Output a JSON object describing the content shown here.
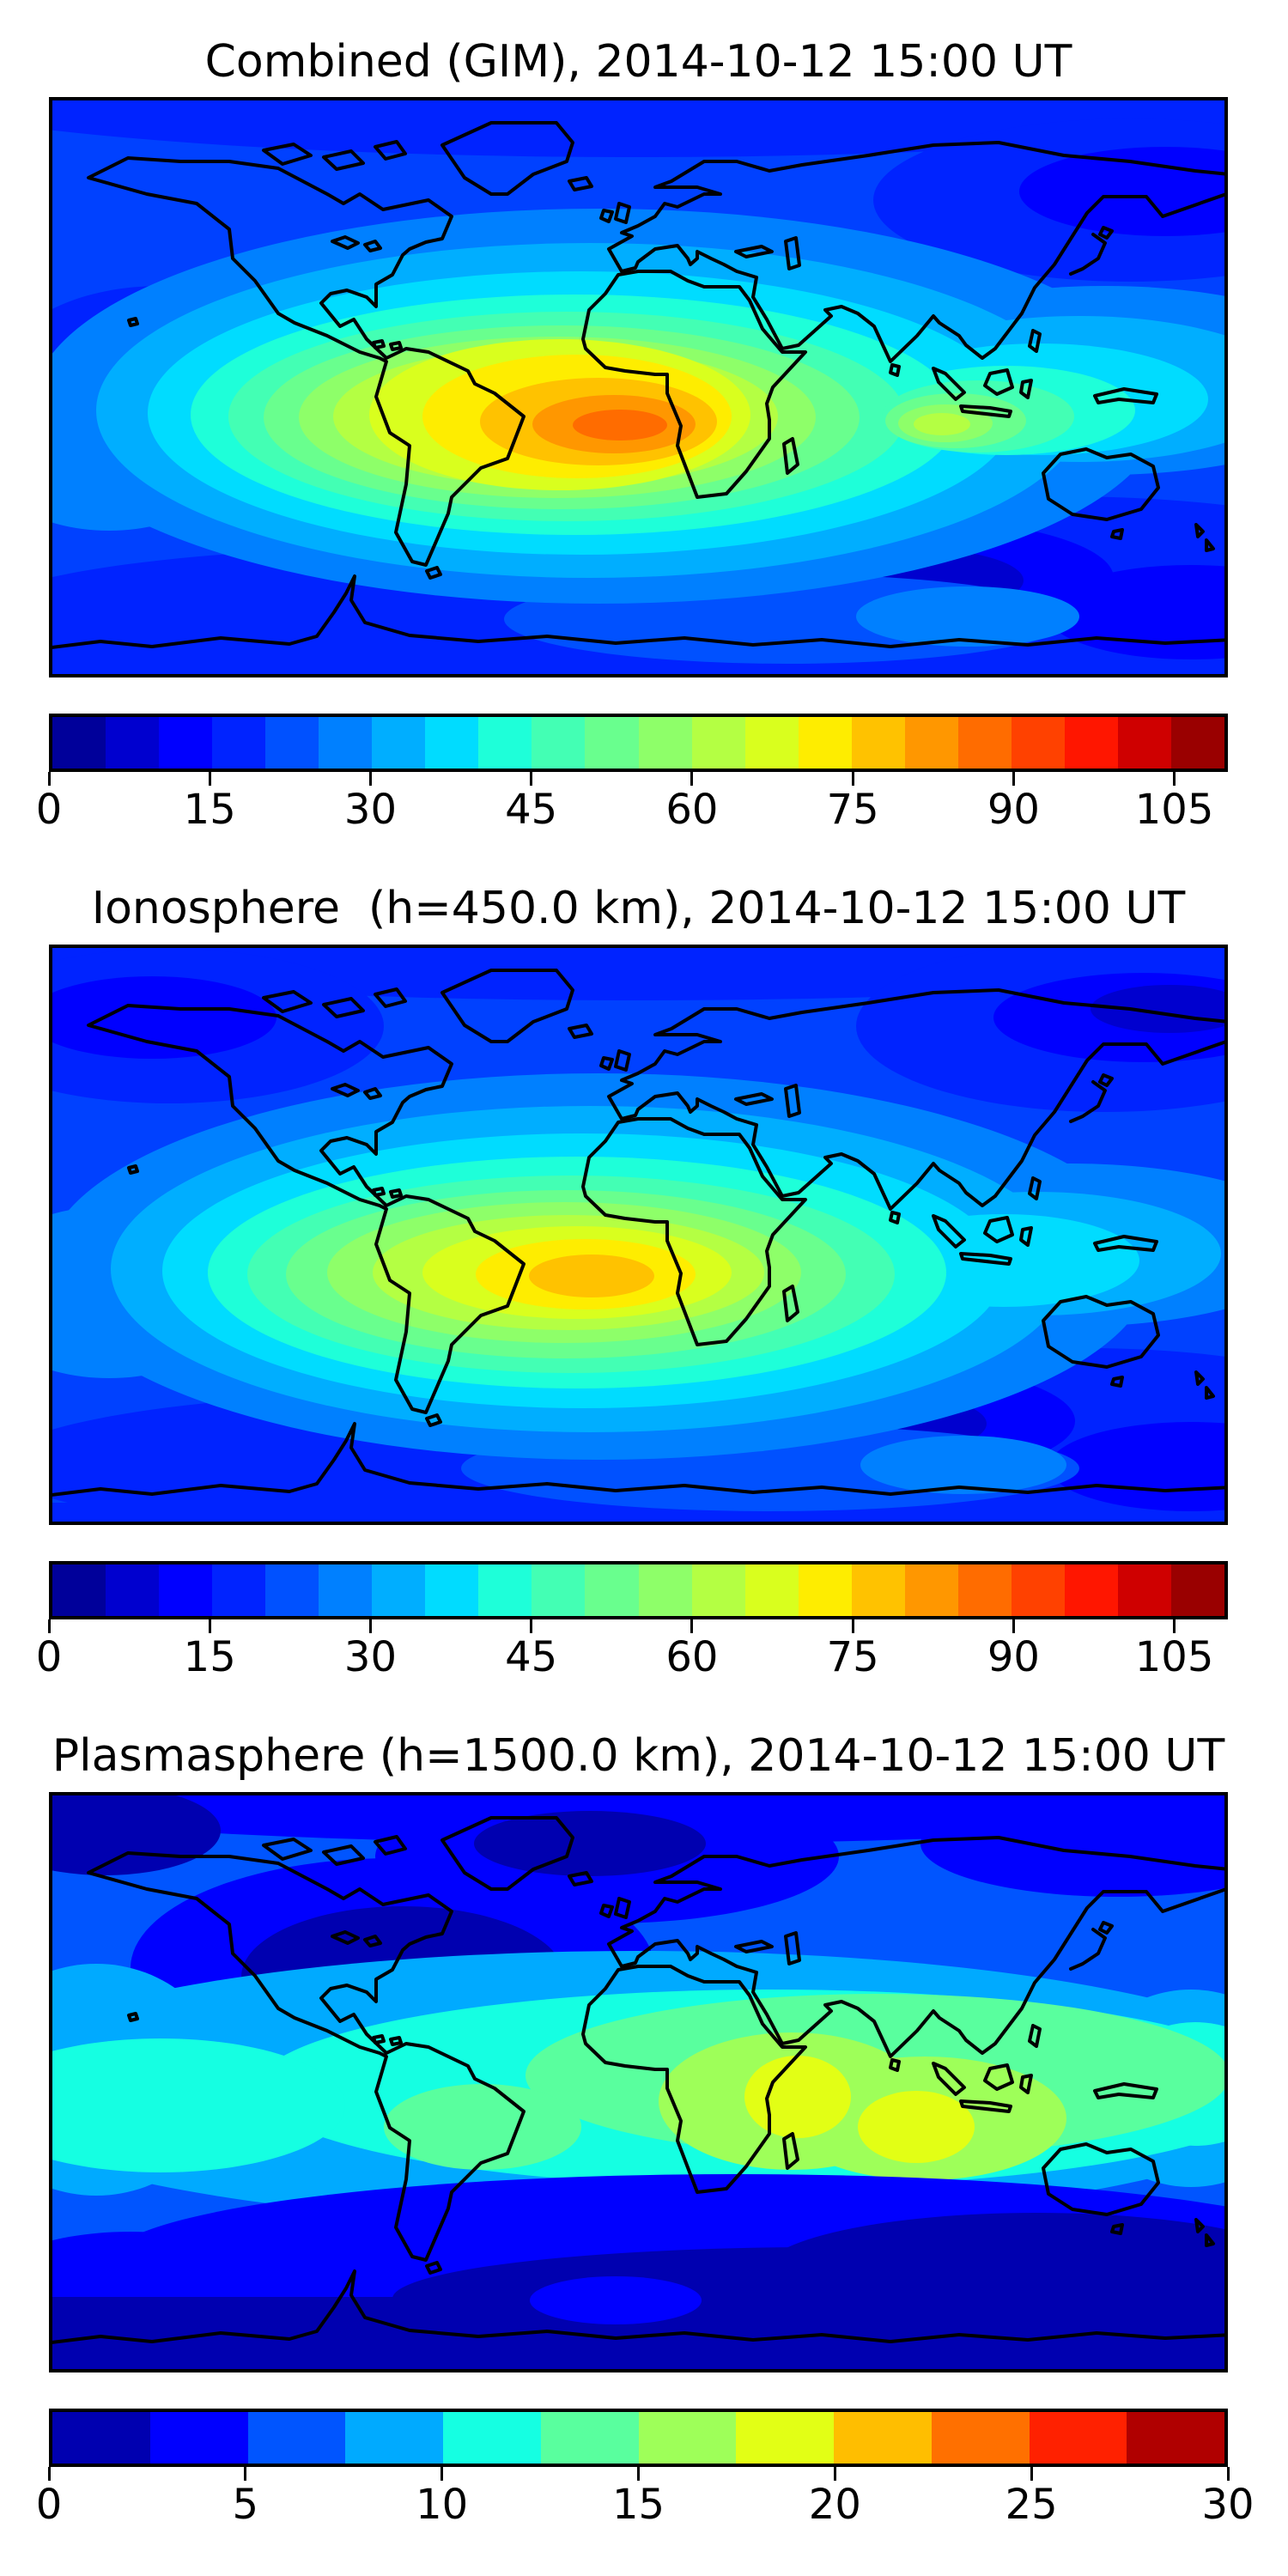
{
  "figure": {
    "background": "#ffffff",
    "colormap": "jet (discrete filled contours)",
    "panels": [
      {
        "id": "combined",
        "title": "Combined (GIM), 2014-10-12 15:00 UT",
        "colorbar": {
          "min": 0,
          "max": 110,
          "level_step": 5,
          "ticks": [
            0,
            15,
            30,
            45,
            60,
            75,
            90,
            105
          ],
          "segment_colors": [
            "#00009A",
            "#0000CF",
            "#0000FF",
            "#0023FF",
            "#0051FF",
            "#0080FF",
            "#00AEFF",
            "#00DCFF",
            "#1EFFD9",
            "#43FFB4",
            "#69FF8E",
            "#8EFF69",
            "#B4FF43",
            "#D9FF1E",
            "#FEED00",
            "#FFC200",
            "#FF9700",
            "#FF6C00",
            "#FF4100",
            "#FF1600",
            "#CF0000",
            "#9A0000"
          ]
        }
      },
      {
        "id": "ionosphere",
        "title": "Ionosphere  (h=450.0 km), 2014-10-12 15:00 UT",
        "colorbar": {
          "min": 0,
          "max": 110,
          "level_step": 5,
          "ticks": [
            0,
            15,
            30,
            45,
            60,
            75,
            90,
            105
          ],
          "segment_colors": [
            "#00009A",
            "#0000CF",
            "#0000FF",
            "#0023FF",
            "#0051FF",
            "#0080FF",
            "#00AEFF",
            "#00DCFF",
            "#1EFFD9",
            "#43FFB4",
            "#69FF8E",
            "#8EFF69",
            "#B4FF43",
            "#D9FF1E",
            "#FEED00",
            "#FFC200",
            "#FF9700",
            "#FF6C00",
            "#FF4100",
            "#FF1600",
            "#CF0000",
            "#9A0000"
          ]
        }
      },
      {
        "id": "plasmasphere",
        "title": "Plasmasphere (h=1500.0 km), 2014-10-12 15:00 UT",
        "colorbar": {
          "min": 0,
          "max": 30,
          "level_step": 2.5,
          "ticks": [
            0,
            5,
            10,
            15,
            20,
            25,
            30
          ],
          "segment_colors": [
            "#0000B0",
            "#0000FF",
            "#0055FF",
            "#00AAFF",
            "#15FFE2",
            "#59FF9E",
            "#9EFF59",
            "#E2FF15",
            "#FFBE00",
            "#FF7000",
            "#FF2100",
            "#B00000"
          ]
        }
      }
    ]
  },
  "chart_data": [
    {
      "type": "heatmap",
      "title": "Combined (GIM), 2014-10-12 15:00 UT",
      "projection": "equirectangular world map, lon -180..180, lat -90..90, black coastlines",
      "colormap": "jet, discrete filled contours",
      "value_range": [
        0,
        110
      ],
      "contour_step": 5,
      "colorbar_ticks": [
        0,
        15,
        30,
        45,
        60,
        75,
        90,
        105
      ],
      "legend_position": "horizontal colorbar below map",
      "features": [
        {
          "name": "equatorial-anomaly-peak",
          "lon": 0,
          "lat": -10,
          "value": 90,
          "note": "orange core (85-90) over equatorial Atlantic off Gabon"
        },
        {
          "name": "high-band",
          "lon_range": [
            -60,
            40
          ],
          "lat_range": [
            -25,
            25
          ],
          "value": "60-85",
          "note": "yellow/gold enhancement over Africa and tropical Atlantic/South America"
        },
        {
          "name": "eastward-band",
          "lon_range": [
            40,
            180
          ],
          "lat": 5,
          "value": "30-55",
          "note": "cyan-green band across Indian Ocean to SE Asia, local ~55 near Sumatra"
        },
        {
          "name": "india-depression",
          "lon": 78,
          "lat": 15,
          "value": "20-25",
          "note": "local blue dip near India"
        },
        {
          "name": "polar-minima",
          "value": "5-15",
          "note": "dark blue pockets north Pacific near Alaska (~5-10) and southern oceans (~5-10)"
        }
      ]
    },
    {
      "type": "heatmap",
      "title": "Ionosphere  (h=450.0 km), 2014-10-12 15:00 UT",
      "projection": "equirectangular world map, lon -180..180, lat -90..90, black coastlines",
      "colormap": "jet, discrete filled contours",
      "value_range": [
        0,
        110
      ],
      "contour_step": 5,
      "colorbar_ticks": [
        0,
        15,
        30,
        45,
        60,
        75,
        90,
        105
      ],
      "legend_position": "horizontal colorbar below map",
      "features": [
        {
          "name": "equatorial-peak",
          "lon": -15,
          "lat": -8,
          "value": 73,
          "note": "gold/yellow core (70-75) over equatorial Atlantic west of Africa"
        },
        {
          "name": "enhancement",
          "lon_range": [
            -70,
            35
          ],
          "lat_range": [
            -30,
            20
          ],
          "value": "45-70",
          "note": "green-yellow region over South America, Atlantic and Africa"
        },
        {
          "name": "polar-minima",
          "value": "0-10",
          "note": "dark navy pockets at high latitudes, both hemispheres"
        },
        {
          "name": "india-depression",
          "lon": 80,
          "lat": 18,
          "value": "15-20",
          "note": "local blue dip near India"
        }
      ]
    },
    {
      "type": "heatmap",
      "title": "Plasmasphere (h=1500.0 km), 2014-10-12 15:00 UT",
      "projection": "equirectangular world map, lon -180..180, lat -90..90, black coastlines",
      "colormap": "jet, discrete filled contours",
      "value_range": [
        0,
        30
      ],
      "contour_step": 2.5,
      "colorbar_ticks": [
        0,
        5,
        10,
        15,
        20,
        25,
        30
      ],
      "legend_position": "horizontal colorbar below map",
      "features": [
        {
          "name": "tropical-band",
          "lat_range": [
            -20,
            25
          ],
          "value": "10-15",
          "note": "cyan band circling the globe"
        },
        {
          "name": "peak-arabian-sea",
          "lon": 62,
          "lat": 2,
          "value": 21,
          "note": "yellow core ~20-22.5"
        },
        {
          "name": "peak-indonesia",
          "lon": 100,
          "lat": -8,
          "value": 21,
          "note": "yellow core ~20-22.5 near Sumatra/Java"
        },
        {
          "name": "asia-enhancement",
          "lon_range": [
            40,
            150
          ],
          "lat_range": [
            -15,
            40
          ],
          "value": "12.5-17.5",
          "note": "spring-green region over South/East Asia"
        },
        {
          "name": "north-america-minimum",
          "lon": -75,
          "lat": 35,
          "value": 4,
          "note": "dark navy blob (2.5-5) over eastern North America / North Atlantic"
        },
        {
          "name": "southern-minimum",
          "lat_range": [
            -90,
            -35
          ],
          "value": "0-5",
          "note": "dark navy band across southern high latitudes"
        }
      ]
    }
  ]
}
